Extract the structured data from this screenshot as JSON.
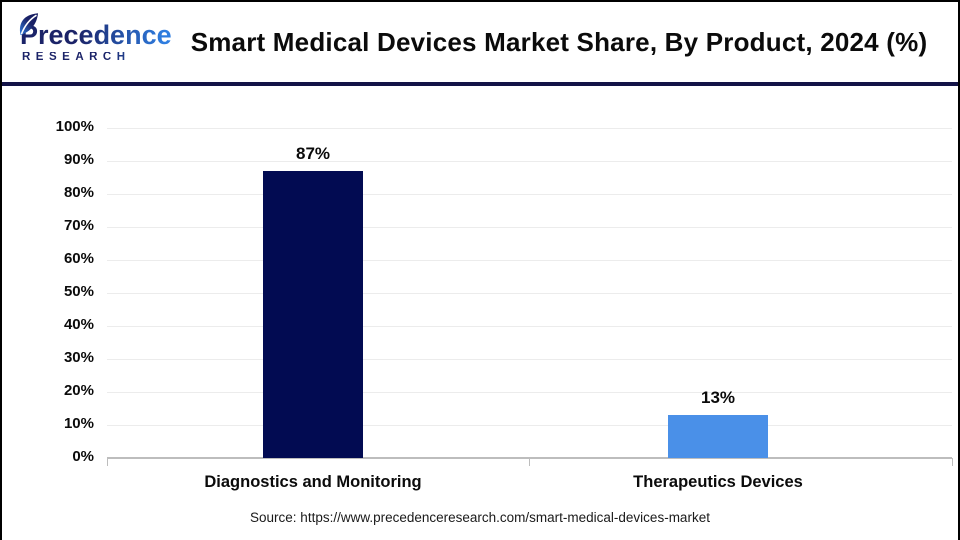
{
  "header": {
    "logo": {
      "brand": "Precedence",
      "sub": "RESEARCH"
    },
    "title": "Smart Medical Devices Market Share, By Product, 2024 (%)"
  },
  "chart_data": {
    "type": "bar",
    "title": "Smart Medical Devices Market Share, By Product, 2024 (%)",
    "categories": [
      "Diagnostics and Monitoring",
      "Therapeutics Devices"
    ],
    "values": [
      87,
      13
    ],
    "value_labels": [
      "87%",
      "13%"
    ],
    "bar_colors": [
      "#020b52",
      "#4a90e8"
    ],
    "xlabel": "",
    "ylabel": "",
    "ylim": [
      0,
      100
    ],
    "ytick_step": 10,
    "ytick_suffix": "%",
    "grid": true,
    "legend": "none"
  },
  "footer": {
    "source": "Source: https://www.precedenceresearch.com/smart-medical-devices-market"
  },
  "colors": {
    "bar_primary": "#020b52",
    "bar_secondary": "#4a90e8",
    "divider": "#131347",
    "logo_navy": "#1b2368",
    "logo_blue": "#2e7de0",
    "gridline": "#ececec",
    "axis_line": "#bdbdbd",
    "title_text": "#0b0b0b"
  }
}
